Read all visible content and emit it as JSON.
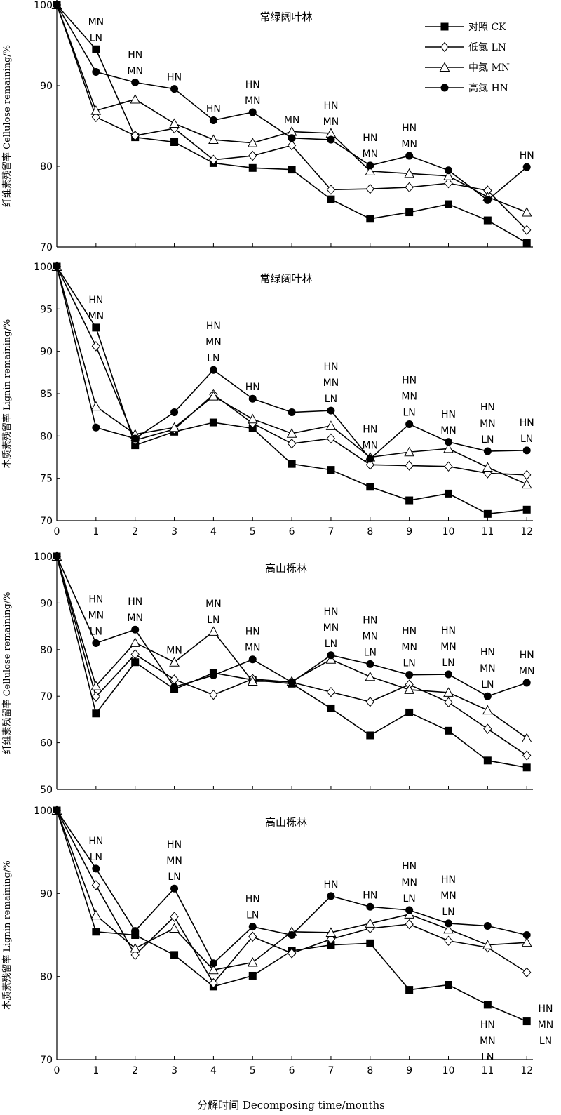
{
  "figure": {
    "xlabel": "分解时间 Decomposing time/months"
  },
  "legend": {
    "items": [
      {
        "label": "对照 CK",
        "marker": "square"
      },
      {
        "label": "低氮 LN",
        "marker": "diamond"
      },
      {
        "label": "中氮 MN",
        "marker": "triangle"
      },
      {
        "label": "高氮 HN",
        "marker": "circle"
      }
    ]
  },
  "chart_data": [
    {
      "type": "line",
      "title": "常绿阔叶林",
      "ylabel": "纤维素残留率 Cellulose remaining/%",
      "x": [
        0,
        1,
        2,
        3,
        4,
        5,
        6,
        7,
        8,
        9,
        10,
        11,
        12
      ],
      "ylim": [
        70,
        100
      ],
      "yticks": [
        70,
        80,
        90,
        100
      ],
      "series": [
        {
          "name": "对照 CK",
          "values": [
            100,
            94.5,
            83.6,
            83.0,
            80.4,
            79.8,
            79.6,
            75.9,
            73.5,
            74.3,
            75.3,
            73.3,
            70.5
          ]
        },
        {
          "name": "低氮 LN",
          "values": [
            100,
            86.1,
            83.8,
            84.7,
            80.8,
            81.3,
            82.6,
            77.1,
            77.2,
            77.4,
            77.9,
            77.0,
            72.1
          ]
        },
        {
          "name": "中氮 MN",
          "values": [
            100,
            86.9,
            88.3,
            85.3,
            83.3,
            82.9,
            84.3,
            84.1,
            79.4,
            79.1,
            78.8,
            76.2,
            74.3
          ]
        },
        {
          "name": "高氮 HN",
          "values": [
            100,
            91.7,
            90.4,
            89.6,
            85.7,
            86.7,
            83.5,
            83.3,
            80.1,
            81.3,
            79.5,
            75.8,
            79.9
          ]
        }
      ],
      "significance": [
        [],
        [
          "MN",
          "LN"
        ],
        [
          "HN",
          "MN"
        ],
        [
          "HN"
        ],
        [
          "HN"
        ],
        [
          "HN",
          "MN"
        ],
        [
          "MN"
        ],
        [
          "HN",
          "MN"
        ],
        [
          "HN",
          "MN"
        ],
        [
          "HN",
          "MN"
        ],
        [],
        [],
        [
          "HN"
        ]
      ]
    },
    {
      "type": "line",
      "title": "常绿阔叶林",
      "ylabel": "木质素残留率 Lignin remaining/%",
      "x": [
        0,
        1,
        2,
        3,
        4,
        5,
        6,
        7,
        8,
        9,
        10,
        11,
        12
      ],
      "ylim": [
        70,
        100
      ],
      "yticks": [
        70,
        75,
        80,
        85,
        90,
        95,
        100
      ],
      "series": [
        {
          "name": "对照 CK",
          "values": [
            100,
            92.8,
            78.9,
            80.5,
            81.6,
            80.9,
            76.7,
            76.0,
            74.0,
            72.4,
            73.2,
            70.8,
            71.3
          ]
        },
        {
          "name": "低氮 LN",
          "values": [
            100,
            90.6,
            79.5,
            80.8,
            84.9,
            81.5,
            79.1,
            79.7,
            76.6,
            76.5,
            76.4,
            75.6,
            75.4
          ]
        },
        {
          "name": "中氮 MN",
          "values": [
            100,
            83.5,
            80.2,
            81.0,
            84.7,
            82.0,
            80.3,
            81.2,
            77.5,
            78.1,
            78.5,
            76.3,
            74.3
          ]
        },
        {
          "name": "高氮 HN",
          "values": [
            100,
            81.0,
            79.7,
            82.8,
            87.8,
            84.4,
            82.8,
            83.0,
            77.3,
            81.4,
            79.3,
            78.2,
            78.3
          ]
        }
      ],
      "significance": [
        [],
        [
          "HN",
          "MN"
        ],
        [],
        [],
        [
          "HN",
          "MN",
          "LN"
        ],
        [
          "HN"
        ],
        [],
        [
          "HN",
          "MN",
          "LN"
        ],
        [
          "HN",
          "MN"
        ],
        [
          "HN",
          "MN",
          "LN"
        ],
        [
          "HN",
          "MN"
        ],
        [
          "HN",
          "MN",
          "LN"
        ],
        [
          "HN",
          "LN"
        ]
      ]
    },
    {
      "type": "line",
      "title": "高山栎林",
      "ylabel": "纤维素残留率 Cellulose remaining/%",
      "x": [
        0,
        1,
        2,
        3,
        4,
        5,
        6,
        7,
        8,
        9,
        10,
        11,
        12
      ],
      "ylim": [
        50,
        100
      ],
      "yticks": [
        50,
        60,
        70,
        80,
        90,
        100
      ],
      "series": [
        {
          "name": "对照 CK",
          "values": [
            100,
            66.3,
            77.3,
            71.5,
            75.0,
            73.5,
            72.7,
            67.4,
            61.6,
            66.5,
            62.6,
            56.2,
            54.7
          ]
        },
        {
          "name": "低氮 LN",
          "values": [
            100,
            69.9,
            79.0,
            73.6,
            70.3,
            73.7,
            73.0,
            70.9,
            68.8,
            72.5,
            68.7,
            63.0,
            57.3
          ]
        },
        {
          "name": "中氮 MN",
          "values": [
            100,
            72.2,
            81.5,
            77.3,
            83.9,
            73.2,
            73.2,
            77.9,
            74.2,
            71.4,
            70.8,
            67.0,
            61.0
          ]
        },
        {
          "name": "高氮 HN",
          "values": [
            100,
            81.4,
            84.3,
            72.0,
            74.5,
            77.9,
            73.0,
            78.8,
            76.9,
            74.6,
            74.7,
            70.0,
            72.9
          ]
        }
      ],
      "significance": [
        [],
        [
          "HN",
          "MN",
          "LN"
        ],
        [
          "HN",
          "MN"
        ],
        [
          "MN"
        ],
        [
          "MN",
          "LN"
        ],
        [
          "HN",
          "MN"
        ],
        [],
        [
          "HN",
          "MN",
          "LN"
        ],
        [
          "HN",
          "MN",
          "LN"
        ],
        [
          "HN",
          "MN",
          "LN"
        ],
        [
          "HN",
          "MN",
          "LN"
        ],
        [
          "HN",
          "MN",
          "LN"
        ],
        [
          "HN",
          "MN"
        ]
      ]
    },
    {
      "type": "line",
      "title": "高山栎林",
      "ylabel": "木质素残留率 Lignin remaining/%",
      "x": [
        0,
        1,
        2,
        3,
        4,
        5,
        6,
        7,
        8,
        9,
        10,
        11,
        12
      ],
      "ylim": [
        70,
        100
      ],
      "yticks": [
        70,
        80,
        90,
        100
      ],
      "series": [
        {
          "name": "对照 CK",
          "values": [
            100,
            85.4,
            85.0,
            82.6,
            78.8,
            80.1,
            83.1,
            83.8,
            84.0,
            78.4,
            79.0,
            76.6,
            74.6
          ]
        },
        {
          "name": "低氮 LN",
          "values": [
            100,
            91.0,
            82.6,
            87.2,
            79.2,
            84.8,
            82.8,
            84.5,
            85.8,
            86.3,
            84.3,
            83.5,
            80.5
          ]
        },
        {
          "name": "中氮 MN",
          "values": [
            100,
            87.4,
            83.4,
            85.8,
            80.8,
            81.7,
            85.4,
            85.3,
            86.4,
            87.5,
            85.7,
            83.8,
            84.1
          ]
        },
        {
          "name": "高氮 HN",
          "values": [
            100,
            93.0,
            85.5,
            90.6,
            81.6,
            86.0,
            85.0,
            89.7,
            88.4,
            88.0,
            86.4,
            86.1,
            85.0
          ]
        }
      ],
      "significance": [
        [],
        [
          "HN",
          "LN"
        ],
        [],
        [
          "HN",
          "MN",
          "LN"
        ],
        [],
        [
          "HN",
          "LN"
        ],
        [],
        [
          "HN"
        ],
        [
          "HN"
        ],
        [
          "HN",
          "MN",
          "LN"
        ],
        [
          "HN",
          "MN",
          "LN"
        ],
        [
          "HN",
          "MN",
          "LN"
        ],
        [
          "HN",
          "MN",
          "LN"
        ]
      ]
    }
  ]
}
